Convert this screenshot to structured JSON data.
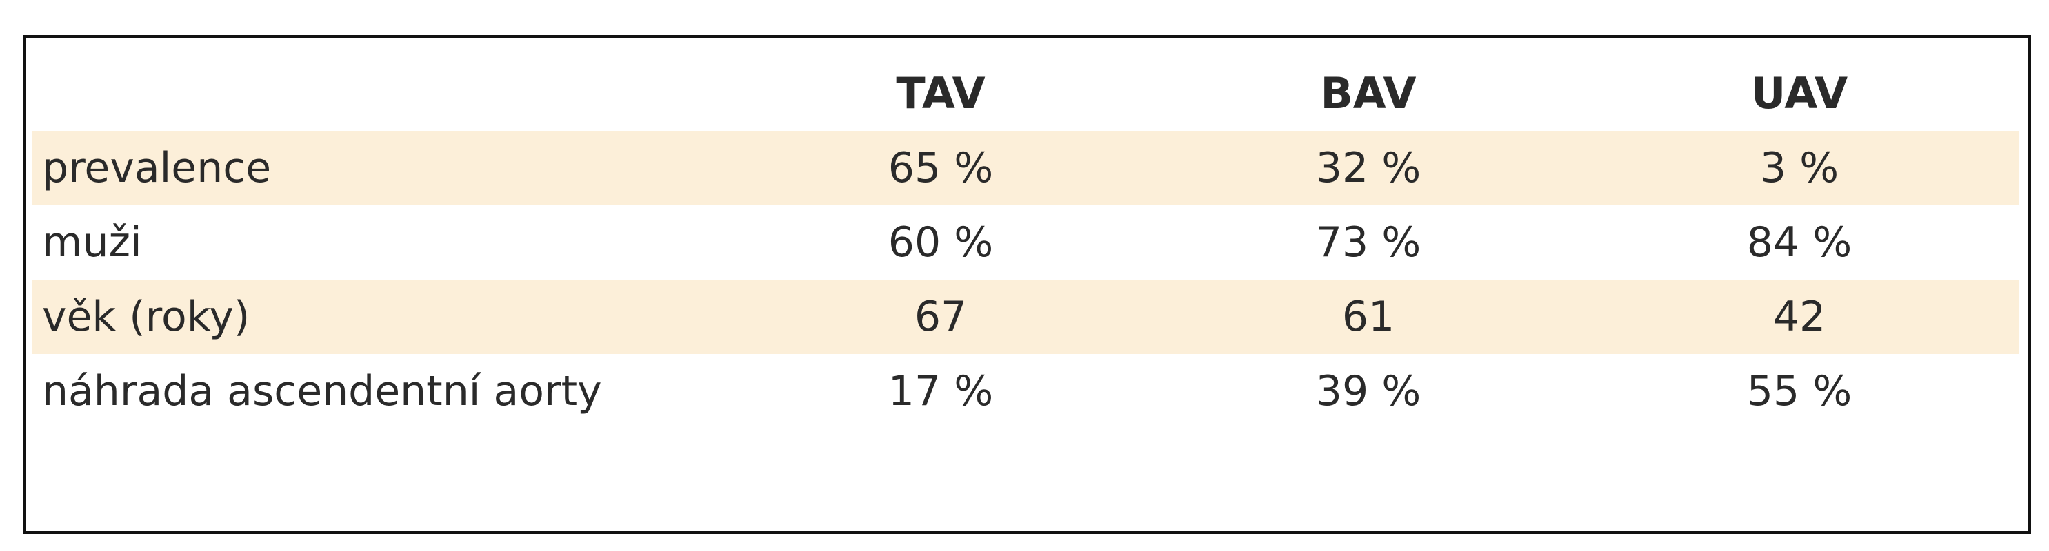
{
  "table": {
    "header": [
      "TAV",
      "BAV",
      "UAV"
    ],
    "rows": [
      [
        "prevalence",
        "65 %",
        "32 %",
        "3 %"
      ],
      [
        "muži",
        "60 %",
        "73 %",
        "84 %"
      ],
      [
        "věk (roky)",
        "67",
        "61",
        "42"
      ],
      [
        "náhrada ascendentní aorty",
        "17 %",
        "39 %",
        "55 %"
      ]
    ]
  }
}
